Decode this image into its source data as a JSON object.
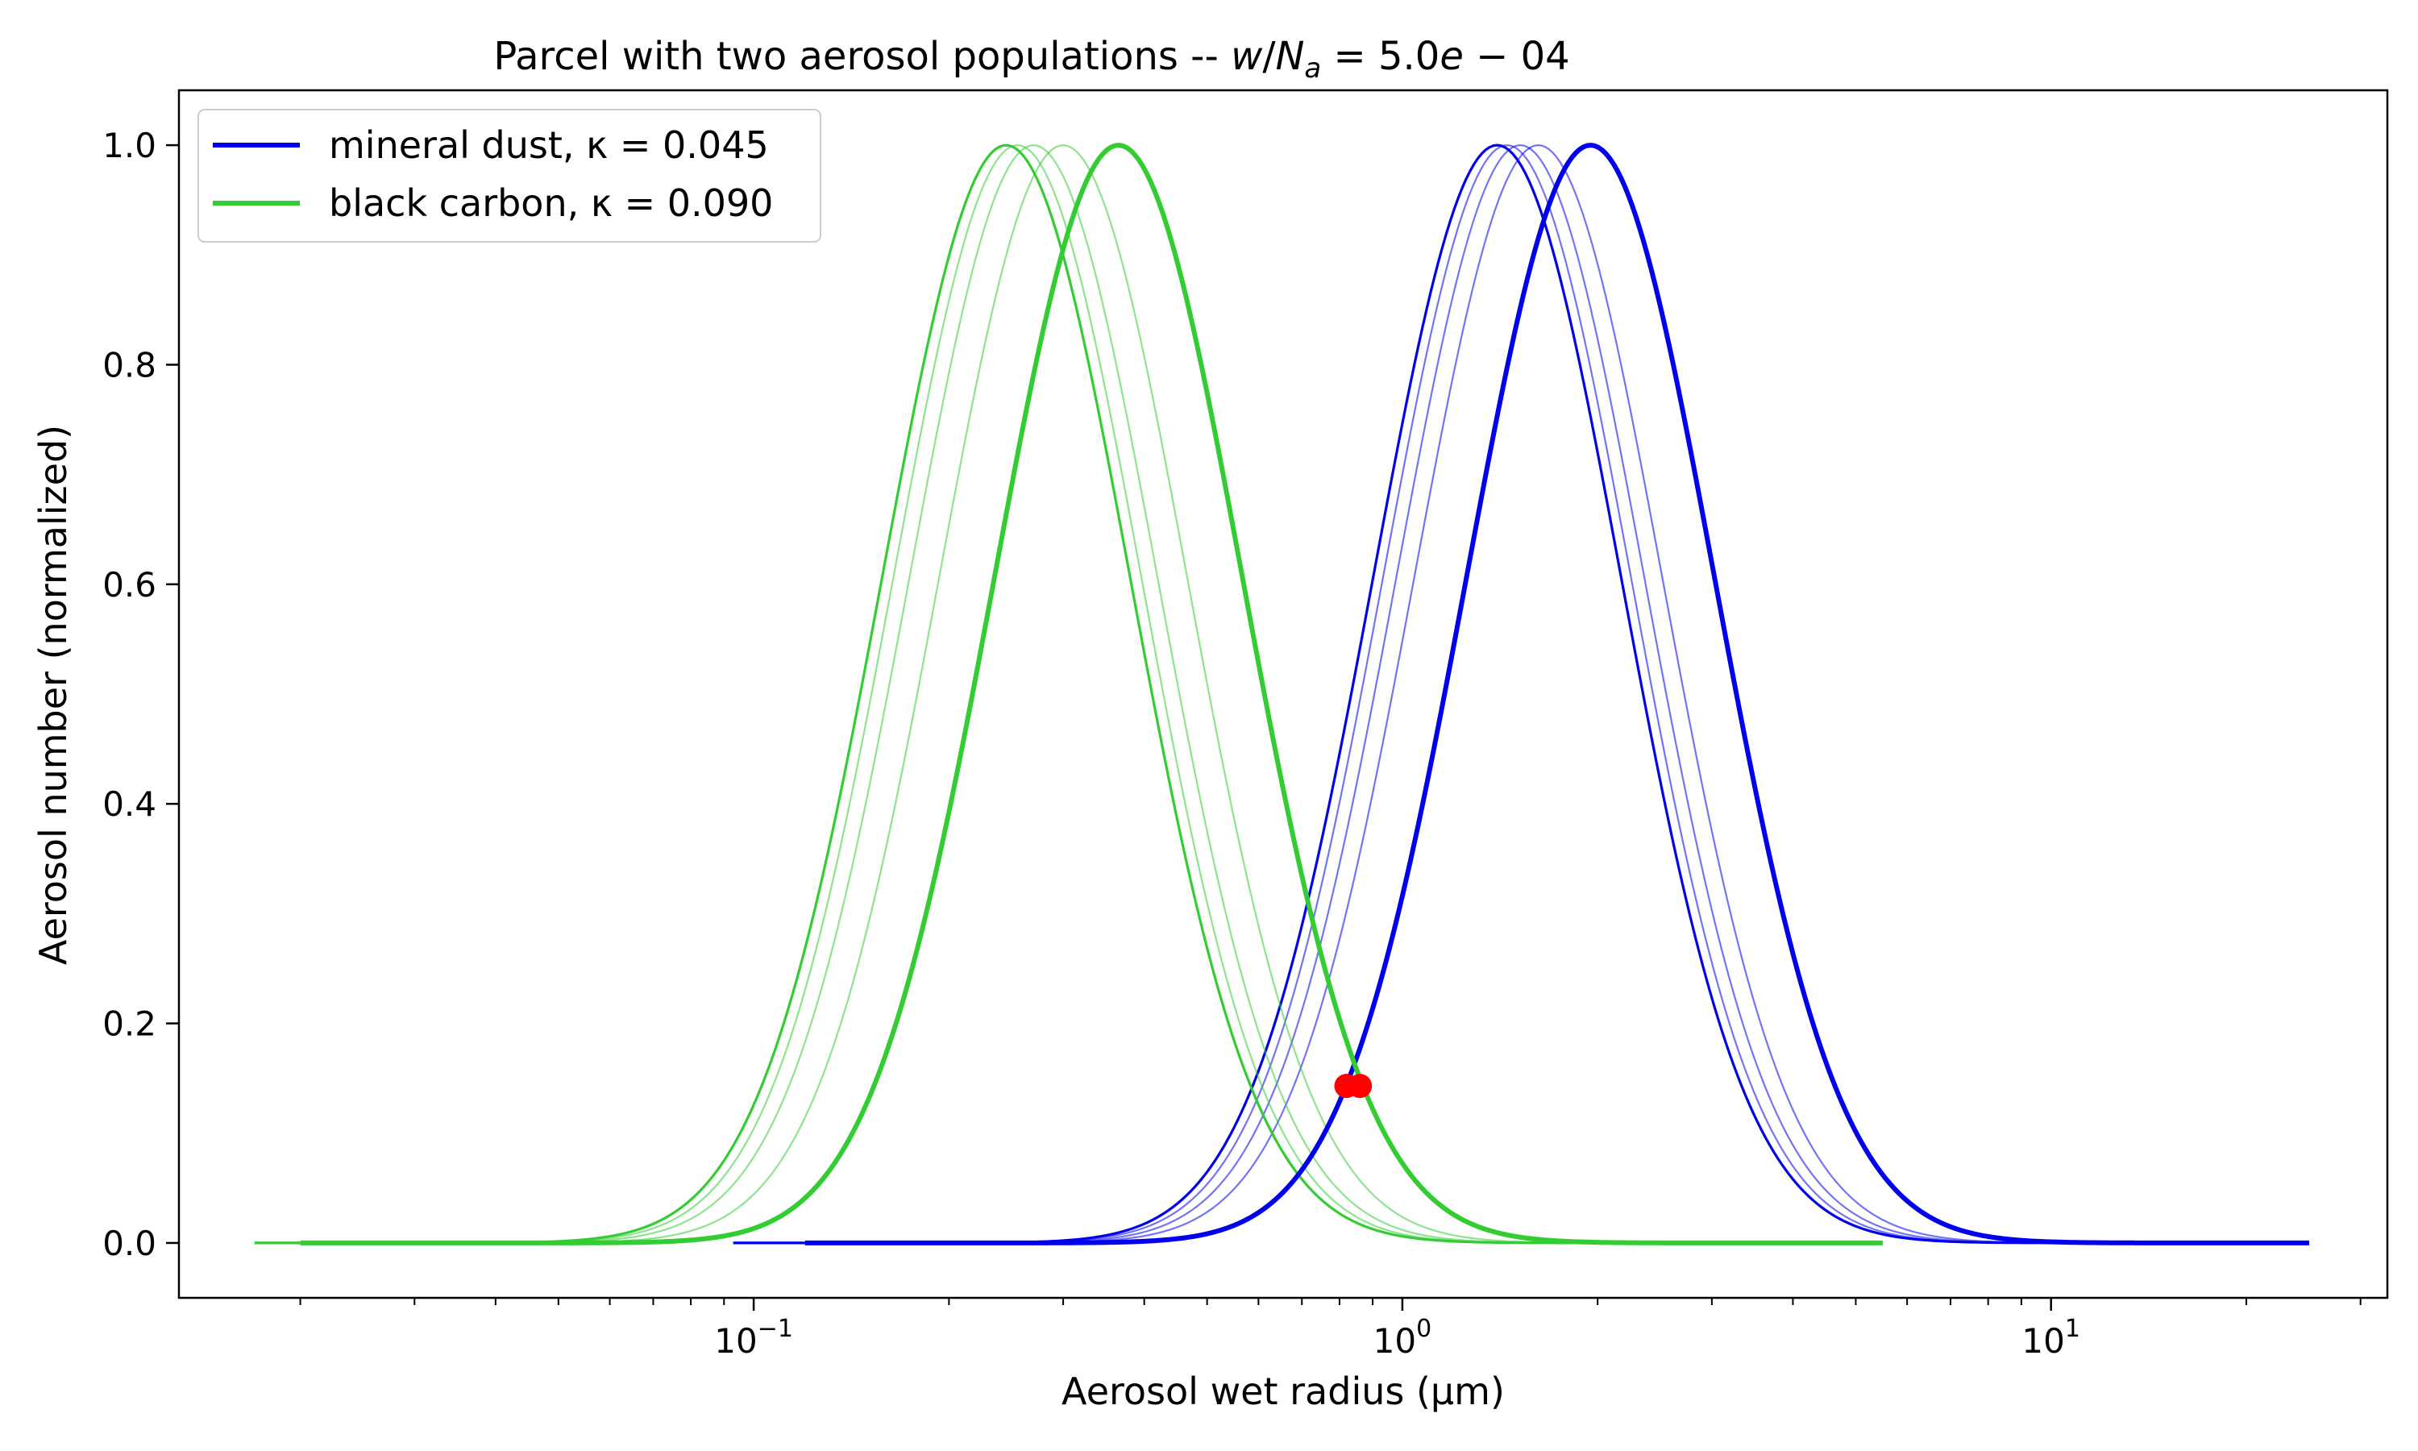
{
  "chart_data": {
    "type": "line",
    "title": "Parcel with two aerosol populations -- w/Na = 5.0e−04",
    "xlabel": "Aerosol wet radius (μm)",
    "ylabel": "Aerosol number (normalized)",
    "xscale": "log",
    "xlim": [
      0.013,
      33
    ],
    "ylim": [
      -0.05,
      1.05
    ],
    "x_ticks": [
      {
        "value": 0.1,
        "base": "10",
        "exp": "−1"
      },
      {
        "value": 1,
        "base": "10",
        "exp": "0"
      },
      {
        "value": 10,
        "base": "10",
        "exp": "1"
      }
    ],
    "y_ticks": [
      {
        "value": 0.0,
        "label": "0.0"
      },
      {
        "value": 0.2,
        "label": "0.2"
      },
      {
        "value": 0.4,
        "label": "0.4"
      },
      {
        "value": 0.6,
        "label": "0.6"
      },
      {
        "value": 0.8,
        "label": "0.8"
      },
      {
        "value": 1.0,
        "label": "1.0"
      }
    ],
    "grid": false,
    "legend_position": "top-left",
    "legend": [
      {
        "label": "mineral dust, κ = 0.045",
        "color": "#0000ee"
      },
      {
        "label": "black carbon, κ = 0.090",
        "color": "#33cc33"
      }
    ],
    "series": [
      {
        "name": "mineral dust, κ = 0.045",
        "color": "#0000ee",
        "role": "final",
        "lognormal_peak_um": 1.95,
        "sigma_ln": 0.44,
        "x_range": [
          0.12,
          25
        ],
        "stub_start": 0.093
      },
      {
        "name": "",
        "color": "#0000ee",
        "role": "step",
        "lognormal_peak_um": 1.62,
        "sigma_ln": 0.44,
        "x_range": [
          0.11,
          25
        ]
      },
      {
        "name": "",
        "color": "#0000ee",
        "role": "step",
        "lognormal_peak_um": 1.52,
        "sigma_ln": 0.44,
        "x_range": [
          0.1,
          25
        ]
      },
      {
        "name": "",
        "color": "#0000ee",
        "role": "step",
        "lognormal_peak_um": 1.45,
        "sigma_ln": 0.44,
        "x_range": [
          0.1,
          25
        ]
      },
      {
        "name": "",
        "color": "#0000ee",
        "role": "initial",
        "lognormal_peak_um": 1.4,
        "sigma_ln": 0.44,
        "x_range": [
          0.093,
          25
        ]
      },
      {
        "name": "black carbon, κ = 0.090",
        "color": "#33cc33",
        "role": "final",
        "lognormal_peak_um": 0.365,
        "sigma_ln": 0.44,
        "x_range": [
          0.02,
          5.5
        ],
        "stub_start": 0.017
      },
      {
        "name": "",
        "color": "#33cc33",
        "role": "step",
        "lognormal_peak_um": 0.3,
        "sigma_ln": 0.44,
        "x_range": [
          0.019,
          5.5
        ]
      },
      {
        "name": "",
        "color": "#33cc33",
        "role": "step",
        "lognormal_peak_um": 0.27,
        "sigma_ln": 0.44,
        "x_range": [
          0.018,
          5.5
        ]
      },
      {
        "name": "",
        "color": "#33cc33",
        "role": "step",
        "lognormal_peak_um": 0.255,
        "sigma_ln": 0.44,
        "x_range": [
          0.018,
          5.5
        ]
      },
      {
        "name": "",
        "color": "#33cc33",
        "role": "initial",
        "lognormal_peak_um": 0.245,
        "sigma_ln": 0.44,
        "x_range": [
          0.017,
          5.5
        ]
      }
    ],
    "markers": [
      {
        "x": 0.82,
        "y": 0.143,
        "color": "#ff0000"
      },
      {
        "x": 0.86,
        "y": 0.143,
        "color": "#ff0000"
      }
    ]
  }
}
